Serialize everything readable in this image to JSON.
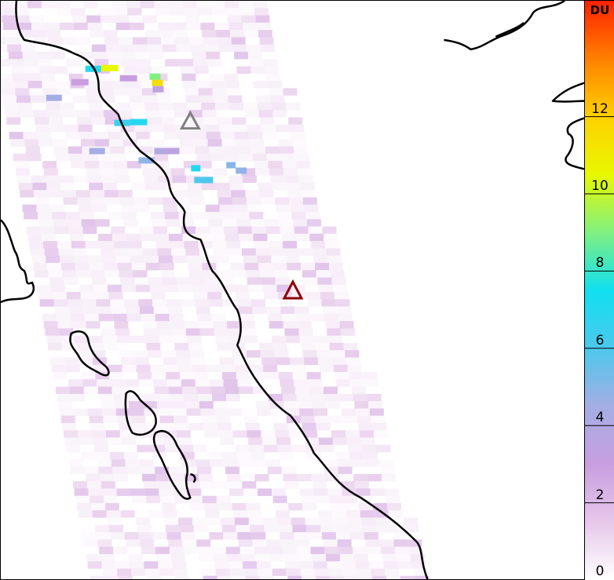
{
  "colorbar": {
    "unit": "DU",
    "min": 0,
    "max": 15,
    "ticks": [
      "0",
      "2",
      "4",
      "6",
      "8",
      "10",
      "12"
    ],
    "colors": [
      "#ffffff",
      "#e6c8ea",
      "#c89ee0",
      "#a4aee4",
      "#4cc8ec",
      "#10e0f0",
      "#80f080",
      "#e8f800",
      "#ffd000",
      "#ff8000",
      "#ff2000"
    ]
  },
  "markers": [
    {
      "name": "volcano-gray",
      "color": "#808080"
    },
    {
      "name": "volcano-red",
      "color": "#8b0000"
    }
  ],
  "coastline_color": "#000000"
}
